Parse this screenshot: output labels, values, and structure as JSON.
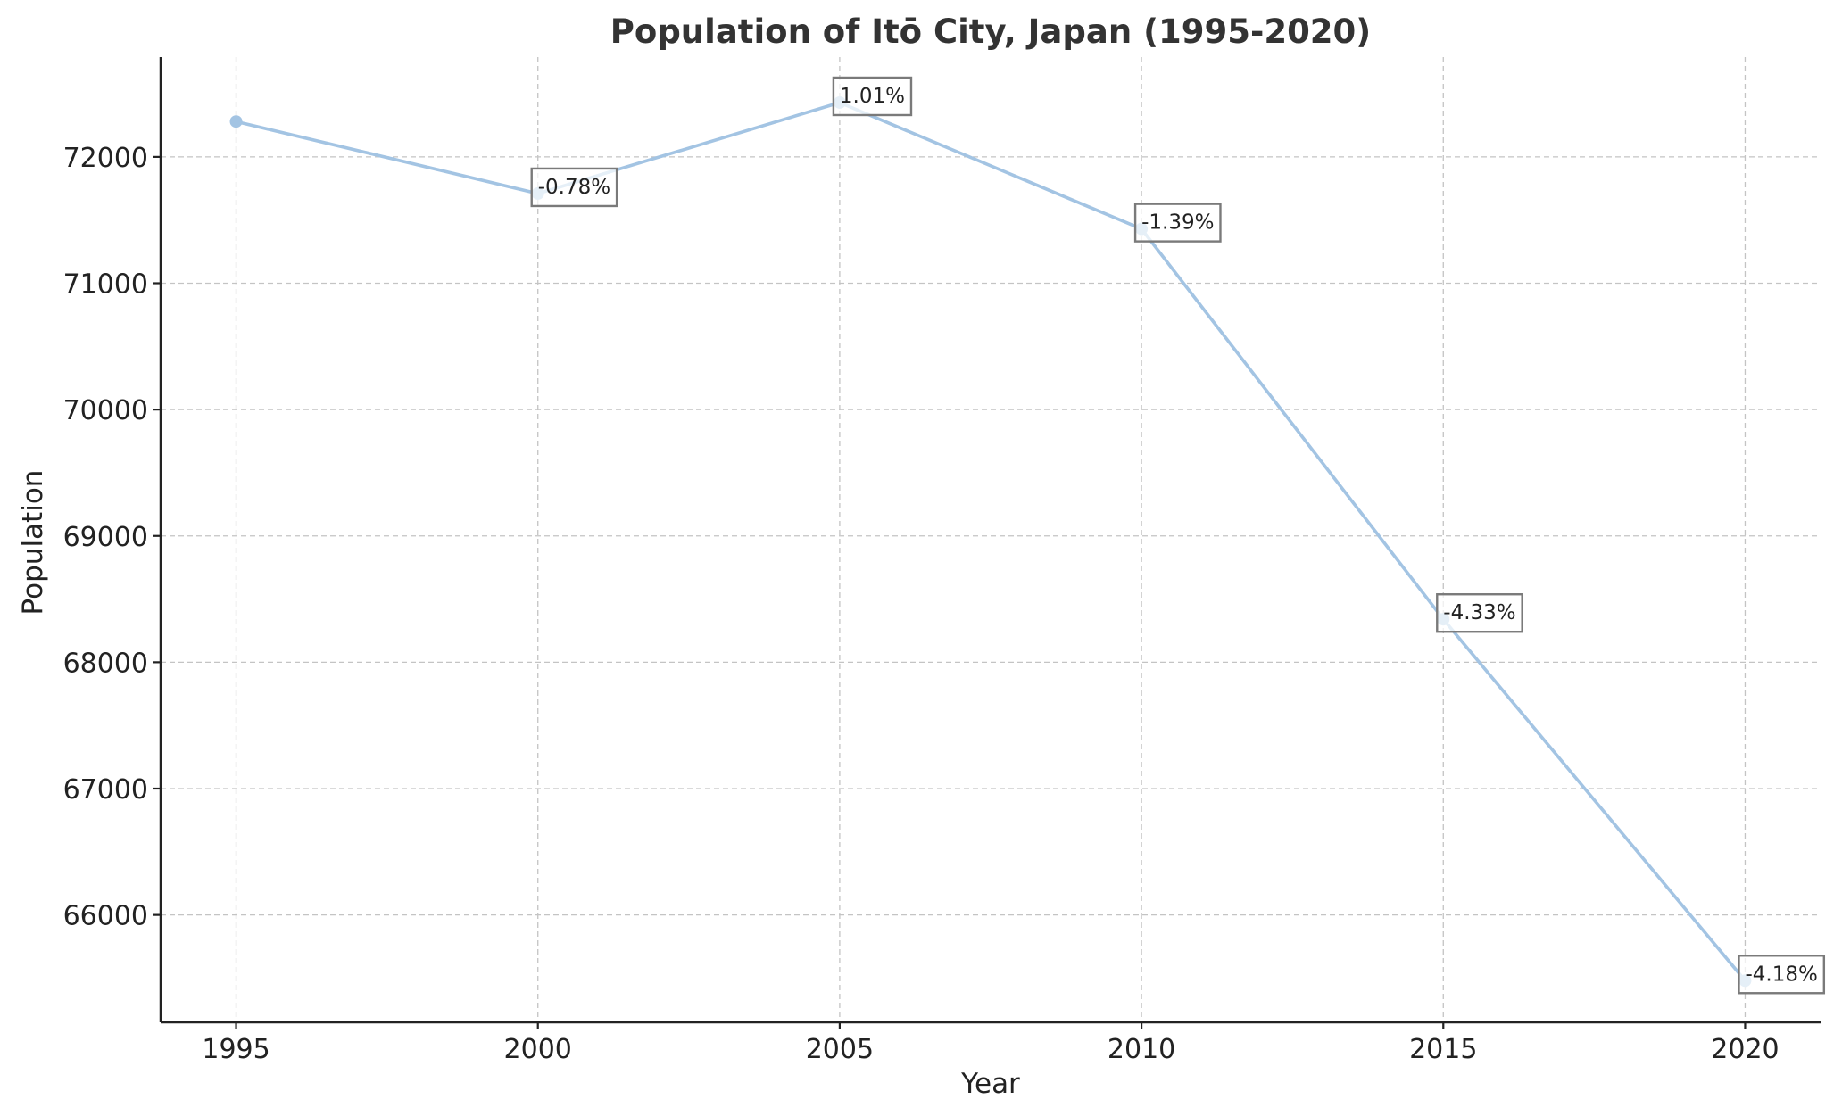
{
  "chart_data": {
    "type": "line",
    "title": "Population of Itō City, Japan (1995-2020)",
    "xlabel": "Year",
    "ylabel": "Population",
    "x": [
      1995,
      2000,
      2005,
      2010,
      2015,
      2020
    ],
    "series": [
      {
        "values": [
          72280,
          71710,
          72430,
          71430,
          68340,
          65480
        ],
        "color": "#a3c4e3"
      }
    ],
    "annotations": [
      {
        "x": 2000,
        "text": "-0.78%"
      },
      {
        "x": 2005,
        "text": "1.01%"
      },
      {
        "x": 2010,
        "text": "-1.39%"
      },
      {
        "x": 2015,
        "text": "-4.33%"
      },
      {
        "x": 2020,
        "text": "-4.18%"
      }
    ],
    "x_ticks": [
      "1995",
      "2000",
      "2005",
      "2010",
      "2015",
      "2020"
    ],
    "y_ticks": [
      "66000",
      "67000",
      "68000",
      "69000",
      "70000",
      "71000",
      "72000"
    ],
    "xlim": [
      1993.75,
      2021.25
    ],
    "ylim": [
      65150,
      72790
    ],
    "grid": true,
    "legend": false
  }
}
